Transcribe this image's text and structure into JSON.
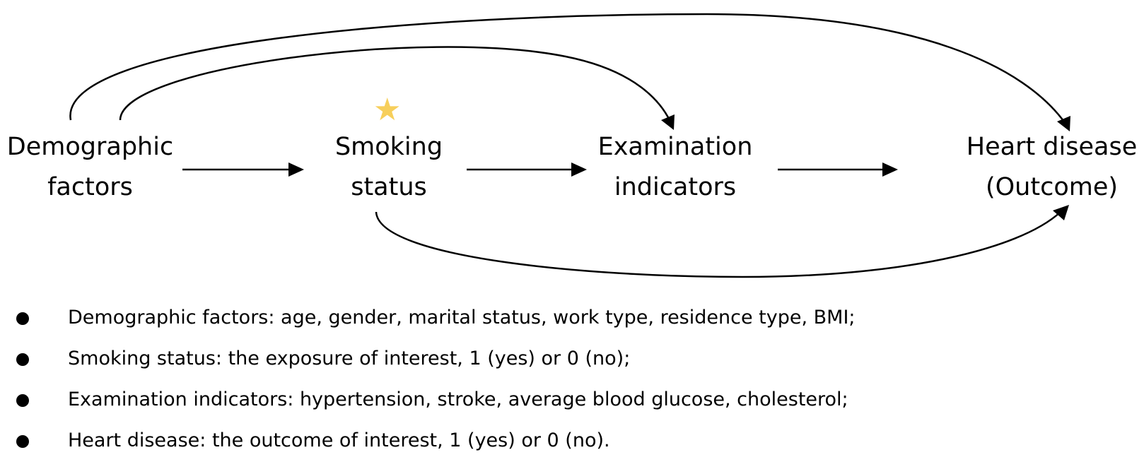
{
  "colors": {
    "star": "#F7CF5B",
    "line": "#000000"
  },
  "nodes": {
    "demographic": {
      "line1": "Demographic",
      "line2": "factors"
    },
    "smoking": {
      "line1": "Smoking",
      "line2": "status"
    },
    "examination": {
      "line1": "Examination",
      "line2": "indicators"
    },
    "heart": {
      "line1": "Heart disease",
      "line2": "(Outcome)"
    }
  },
  "star_icon": "star-icon",
  "star_glyph": "★",
  "bullets": [
    "Demographic factors: age, gender, marital status, work type, residence type, BMI;",
    "Smoking status: the exposure of interest, 1 (yes) or 0 (no);",
    "Examination indicators: hypertension, stroke, average blood glucose, cholesterol;",
    "Heart disease: the outcome of interest, 1 (yes) or 0 (no)."
  ]
}
